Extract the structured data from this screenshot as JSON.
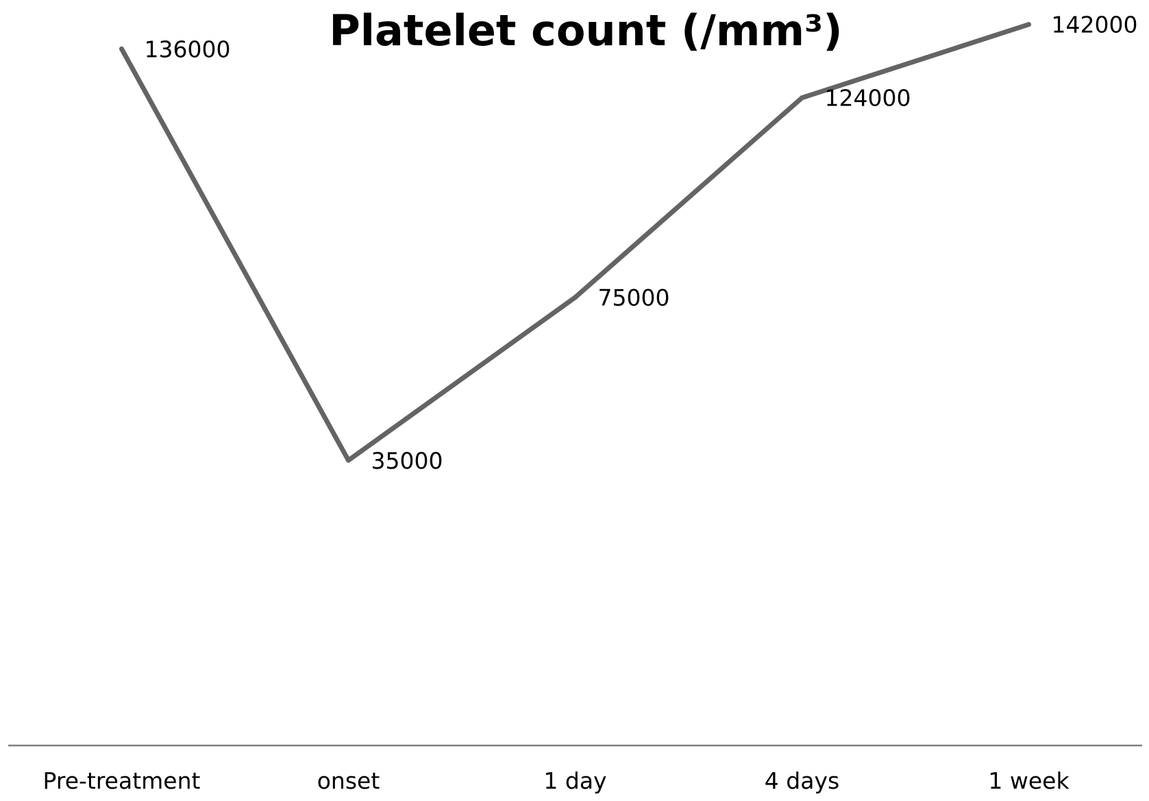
{
  "chart_data": {
    "type": "line",
    "title": "Platelet count (/mm³)",
    "xlabel": "",
    "ylabel": "",
    "categories": [
      "Pre-treatment",
      "onset",
      "1 day",
      "4 days",
      "1 week"
    ],
    "series": [
      {
        "values": [
          136000,
          35000,
          75000,
          124000,
          142000
        ],
        "data_labels": [
          "136000",
          "35000",
          "75000",
          "124000",
          "142000"
        ],
        "color": "#646464"
      }
    ],
    "ylim": [
      -35000,
      148000
    ],
    "grid": false,
    "legend": "none",
    "axis_color": "#7f7f7f"
  }
}
